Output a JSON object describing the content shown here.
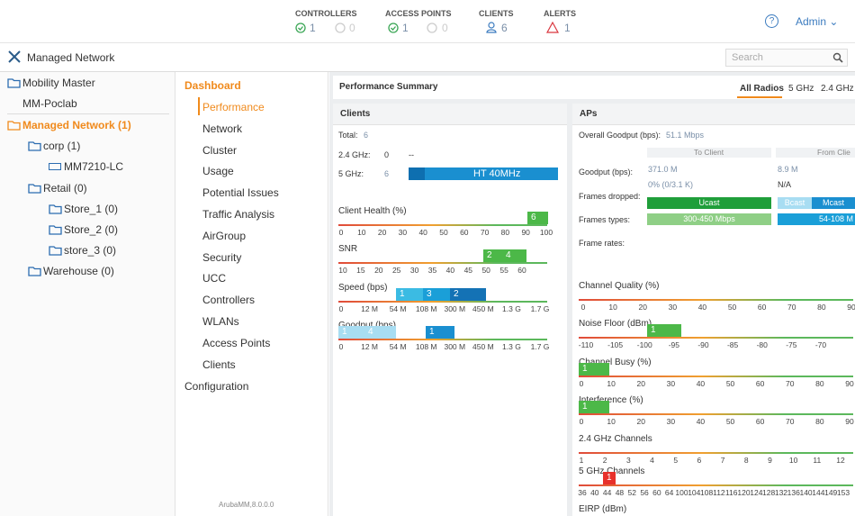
{
  "header": {
    "stats": [
      {
        "label": "CONTROLLERS",
        "up": 1,
        "down": 0
      },
      {
        "label": "ACCESS POINTS",
        "up": 1,
        "down": 0
      },
      {
        "label": "CLIENTS",
        "count": 6
      },
      {
        "label": "ALERTS",
        "count": 1
      }
    ],
    "help": "?",
    "user": "Admin"
  },
  "topbar": {
    "title": "Managed Network",
    "search": "Search"
  },
  "tree": [
    "Mobility Master",
    "MM-Poclab",
    "Managed Network (1)",
    "corp (1)",
    "MM7210-LC",
    "Retail (0)",
    "Store_1 (0)",
    "Store_2 (0)",
    "store_3 (0)",
    "Warehouse (0)"
  ],
  "menu": {
    "heading": "Dashboard",
    "items": [
      "Performance",
      "Network",
      "Cluster",
      "Usage",
      "Potential Issues",
      "Traffic Analysis",
      "AirGroup",
      "Security",
      "UCC",
      "Controllers",
      "WLANs",
      "Access Points",
      "Clients"
    ],
    "footer": "Configuration",
    "version": "ArubaMM,8.0.0.0"
  },
  "summary": {
    "title": "Performance Summary",
    "tabs": [
      "All Radios",
      "5 GHz",
      "2.4 GHz"
    ]
  },
  "clients": {
    "title": "Clients",
    "total_label": "Total:",
    "total": 6,
    "ghz24_label": "2.4 GHz:",
    "ghz24": 0,
    "ghz24_extra": "--",
    "ghz5_label": "5 GHz:",
    "ghz5": 6,
    "ghz5_bar": "HT 40MHz",
    "charts": [
      {
        "title": "Client Health (%)",
        "ticks": [
          0,
          10,
          20,
          30,
          40,
          50,
          60,
          70,
          80,
          90,
          100
        ],
        "bars": [
          "6"
        ]
      },
      {
        "title": "SNR",
        "ticks": [
          10,
          15,
          20,
          25,
          30,
          35,
          40,
          45,
          50,
          55,
          60
        ],
        "bars": [
          "2",
          "4"
        ]
      },
      {
        "title": "Speed (bps)",
        "ticks": [
          0,
          "12 M",
          "54 M",
          "108 M",
          "300 M",
          "450 M",
          "1.3 G",
          "1.7 G"
        ],
        "bars": [
          "1",
          "3",
          "2"
        ]
      },
      {
        "title": "Goodput (bps)",
        "ticks": [
          0,
          "12 M",
          "54 M",
          "108 M",
          "300 M",
          "450 M",
          "1.3 G",
          "1.7 G"
        ],
        "bars": [
          "1",
          "4",
          "1"
        ]
      }
    ]
  },
  "aps": {
    "title": "APs",
    "overall_label": "Overall Goodput (bps):",
    "overall": "51.1 Mbps",
    "col_to": "To Client",
    "col_from": "From Clie",
    "goodput_label": "Goodput (bps):",
    "goodput_to": "371.0 M",
    "goodput_to_sub": "0% (0/3.1 K)",
    "goodput_from": "8.9 M",
    "goodput_from_sub": "N/A",
    "dropped_label": "Frames dropped:",
    "types_label": "Frames types:",
    "rates_label": "Frame rates:",
    "ucast": "Ucast",
    "bcast": "Bcast",
    "mcast": "Mcast",
    "rate_to": "300-450 Mbps",
    "rate_from": "54-108 M",
    "charts": [
      {
        "title": "Channel Quality (%)",
        "ticks": [
          0,
          10,
          20,
          30,
          40,
          50,
          60,
          70,
          80,
          90
        ],
        "bars": []
      },
      {
        "title": "Noise Floor (dBm)",
        "ticks": [
          -110,
          -105,
          -100,
          -95,
          -90,
          -85,
          -80,
          -75,
          -70
        ],
        "bars": [
          "1"
        ]
      },
      {
        "title": "Channel Busy (%)",
        "ticks": [
          0,
          10,
          20,
          30,
          40,
          50,
          60,
          70,
          80,
          90
        ],
        "bars": [
          "1"
        ]
      },
      {
        "title": "Interference (%)",
        "ticks": [
          0,
          10,
          20,
          30,
          40,
          50,
          60,
          70,
          80,
          90
        ],
        "bars": [
          "1"
        ]
      },
      {
        "title": "2.4 GHz Channels",
        "ticks": [
          1,
          2,
          3,
          4,
          5,
          6,
          7,
          8,
          9,
          10,
          11,
          12
        ],
        "bars": []
      },
      {
        "title": "5 GHz Channels",
        "ticks": [
          36,
          40,
          44,
          48,
          52,
          56,
          60,
          64,
          100,
          104,
          108,
          112,
          116,
          120,
          124,
          128,
          132,
          136,
          140,
          144,
          149,
          153
        ],
        "bars": [
          "1"
        ]
      },
      {
        "title": "EIRP (dBm)",
        "ticks": [],
        "bars": []
      }
    ]
  }
}
